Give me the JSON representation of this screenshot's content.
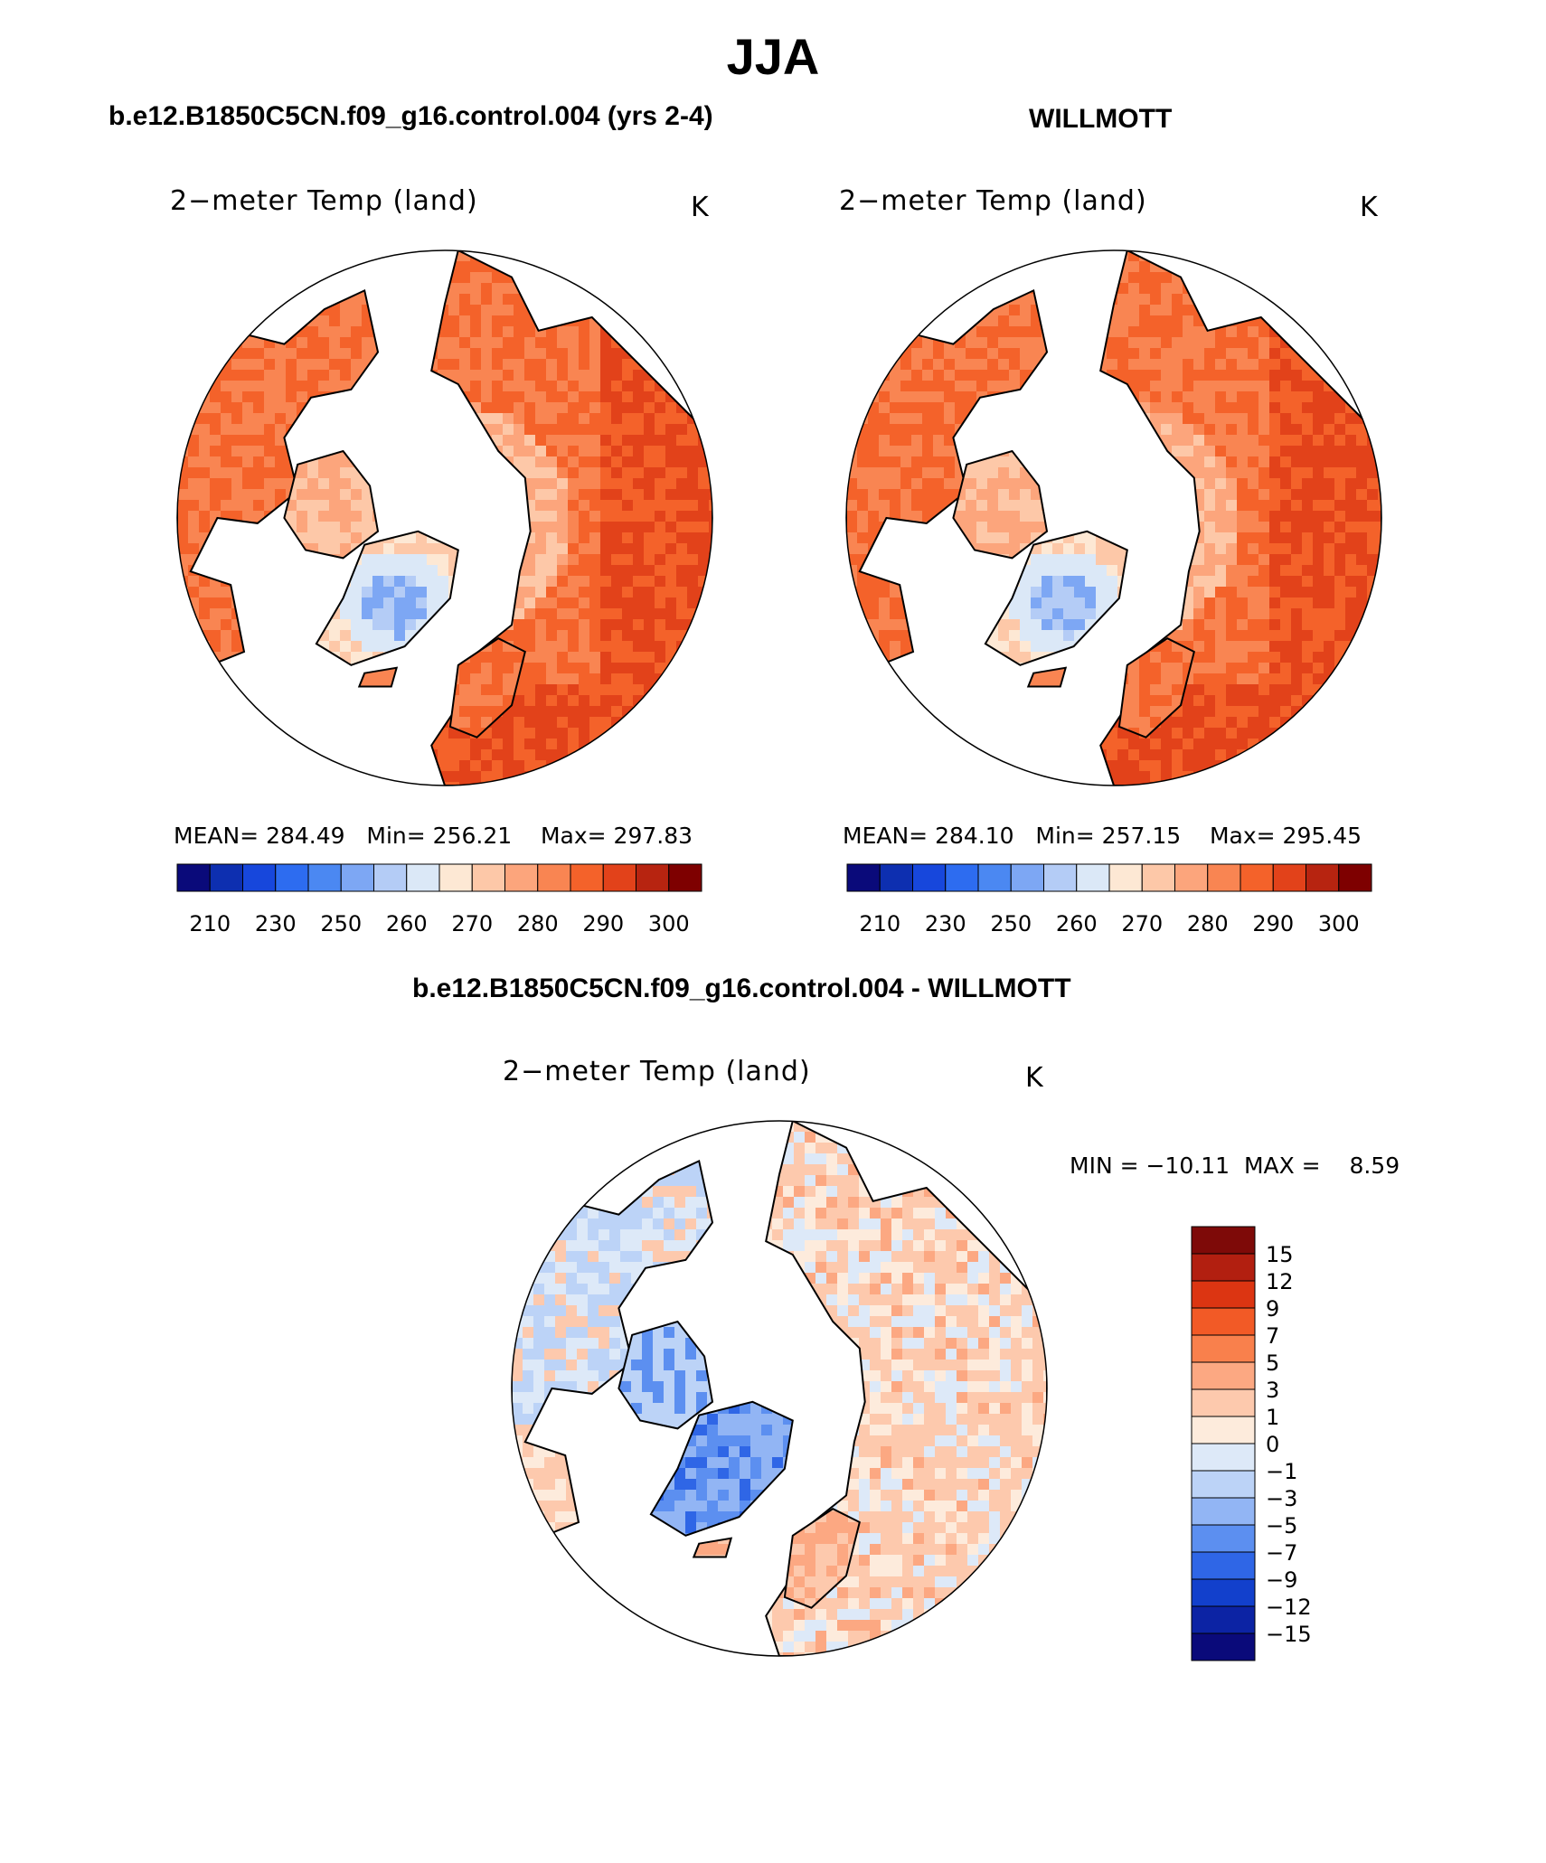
{
  "title": "JJA",
  "panels": [
    {
      "case_title": "b.e12.B1850C5CN.f09_g16.control.004 (yrs 2-4)",
      "variable_label": "2−meter Temp (land)",
      "units": "K",
      "stats": {
        "mean_label": "MEAN=",
        "mean": "284.49",
        "min_label": "Min=",
        "min": "256.21",
        "max_label": "Max=",
        "max": "297.83"
      }
    },
    {
      "case_title": "WILLMOTT",
      "variable_label": "2−meter Temp (land)",
      "units": "K",
      "stats": {
        "mean_label": "MEAN=",
        "mean": "284.10",
        "min_label": "Min=",
        "min": "257.15",
        "max_label": "Max=",
        "max": "295.45"
      }
    },
    {
      "case_title": "b.e12.B1850C5CN.f09_g16.control.004 - WILLMOTT",
      "variable_label": "2−meter Temp (land)",
      "units": "K",
      "stats": {
        "min_label": "MIN =",
        "min": "−10.11",
        "max_label": "MAX =",
        "max": "8.59"
      }
    }
  ],
  "chart_data": [
    {
      "type": "heatmap",
      "projection": "north-polar-stereographic",
      "title": "2−meter Temp (land)",
      "case": "b.e12.B1850C5CN.f09_g16.control.004 (yrs 2-4)",
      "units": "K",
      "mean": 284.49,
      "min": 256.21,
      "max": 297.83,
      "colorbar": {
        "tick_labels": [
          "210",
          "230",
          "250",
          "260",
          "270",
          "280",
          "290",
          "300"
        ],
        "colors": [
          "#0a0a7a",
          "#0d2fb0",
          "#1747dc",
          "#2d6cf0",
          "#4b88f2",
          "#7da7f4",
          "#b4ccf6",
          "#dbe8f7",
          "#fde8d4",
          "#fdc8a8",
          "#fca57c",
          "#f98552",
          "#f4622a",
          "#e2421a",
          "#b72410",
          "#7e0000"
        ]
      }
    },
    {
      "type": "heatmap",
      "projection": "north-polar-stereographic",
      "title": "2−meter Temp (land)",
      "case": "WILLMOTT",
      "units": "K",
      "mean": 284.1,
      "min": 257.15,
      "max": 295.45,
      "colorbar": {
        "tick_labels": [
          "210",
          "230",
          "250",
          "260",
          "270",
          "280",
          "290",
          "300"
        ],
        "colors": [
          "#0a0a7a",
          "#0d2fb0",
          "#1747dc",
          "#2d6cf0",
          "#4b88f2",
          "#7da7f4",
          "#b4ccf6",
          "#dbe8f7",
          "#fde8d4",
          "#fdc8a8",
          "#fca57c",
          "#f98552",
          "#f4622a",
          "#e2421a",
          "#b72410",
          "#7e0000"
        ]
      }
    },
    {
      "type": "heatmap",
      "projection": "north-polar-stereographic",
      "title": "2−meter Temp (land)",
      "case": "b.e12.B1850C5CN.f09_g16.control.004 - WILLMOTT",
      "units": "K",
      "min": -10.11,
      "max": 8.59,
      "colorbar": {
        "tick_labels": [
          "15",
          "12",
          "9",
          "7",
          "5",
          "3",
          "1",
          "0",
          "−1",
          "−3",
          "−5",
          "−7",
          "−9",
          "−12",
          "−15"
        ],
        "colors_top_to_bottom": [
          "#7e0a08",
          "#b21f10",
          "#dc3512",
          "#f25a26",
          "#f9804c",
          "#fca882",
          "#fdc9ad",
          "#fdebdc",
          "#dde9f8",
          "#bcd3f7",
          "#92b5f4",
          "#5c8ff0",
          "#2f66e6",
          "#1240cc",
          "#0c23a4",
          "#0a0a7a"
        ]
      }
    }
  ]
}
